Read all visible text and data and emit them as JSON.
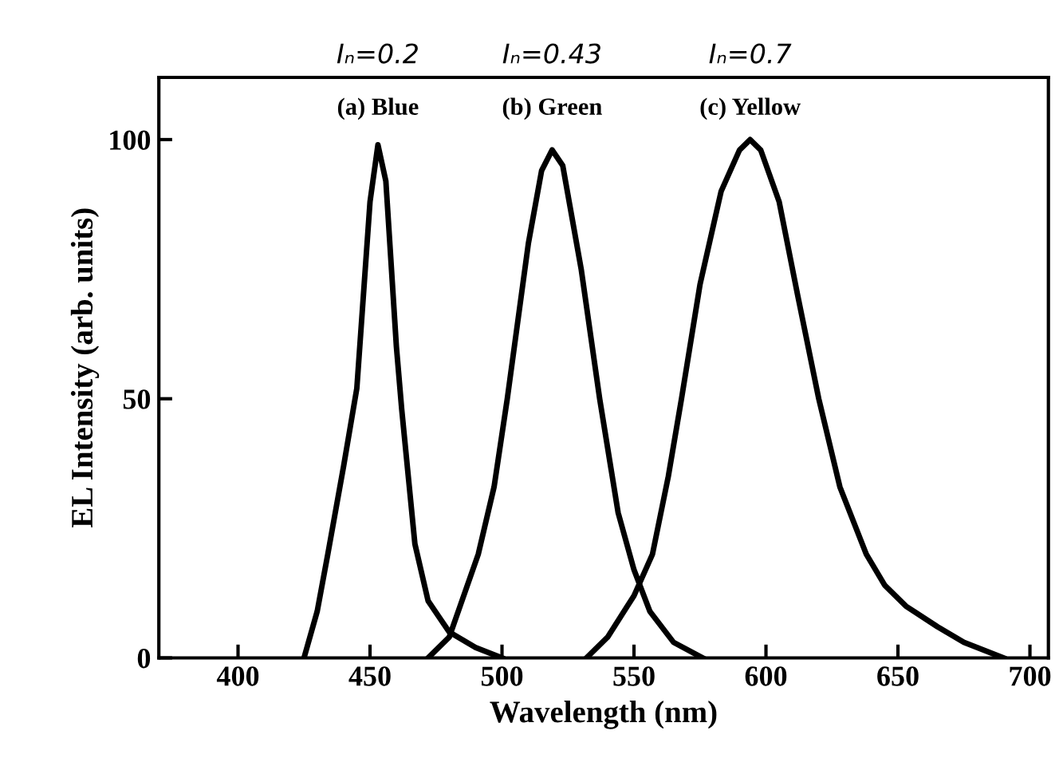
{
  "chart_data": {
    "type": "line",
    "xlabel": "Wavelength (nm)",
    "ylabel": "EL Intensity (arb. units)",
    "xlim": [
      370,
      707
    ],
    "ylim": [
      0,
      112
    ],
    "xticks": [
      400,
      450,
      500,
      550,
      600,
      650,
      700
    ],
    "yticks": [
      0,
      50,
      100
    ],
    "grid": false,
    "legend": false,
    "marker": "none",
    "line_style": "solid",
    "annotations": [
      "Iₙ=0.2",
      "Iₙ=0.43",
      "Iₙ=0.7"
    ],
    "series": [
      {
        "name": "(a) Blue",
        "color": "#000000",
        "x": [
          425,
          430,
          434,
          440,
          445,
          450,
          453,
          456,
          460,
          462,
          467,
          472,
          480,
          490,
          500
        ],
        "values": [
          0,
          9,
          20,
          37,
          52,
          88,
          99,
          92,
          60,
          48,
          22,
          11,
          5,
          2,
          0
        ]
      },
      {
        "name": "(b) Green",
        "color": "#000000",
        "x": [
          472,
          480,
          491,
          497,
          502,
          510,
          515,
          519,
          523,
          530,
          537,
          544,
          550,
          556,
          565,
          576
        ],
        "values": [
          0,
          4,
          20,
          33,
          50,
          80,
          94,
          98,
          95,
          75,
          50,
          28,
          17,
          9,
          3,
          0
        ]
      },
      {
        "name": "(c) Yellow",
        "color": "#000000",
        "x": [
          532,
          540,
          550,
          557,
          563,
          568,
          575,
          583,
          590,
          594,
          598,
          605,
          612,
          620,
          628,
          638,
          645,
          653,
          665,
          675,
          690
        ],
        "values": [
          0,
          4,
          12,
          20,
          35,
          50,
          72,
          90,
          98,
          100,
          98,
          88,
          70,
          50,
          33,
          20,
          14,
          10,
          6,
          3,
          0
        ]
      }
    ]
  }
}
